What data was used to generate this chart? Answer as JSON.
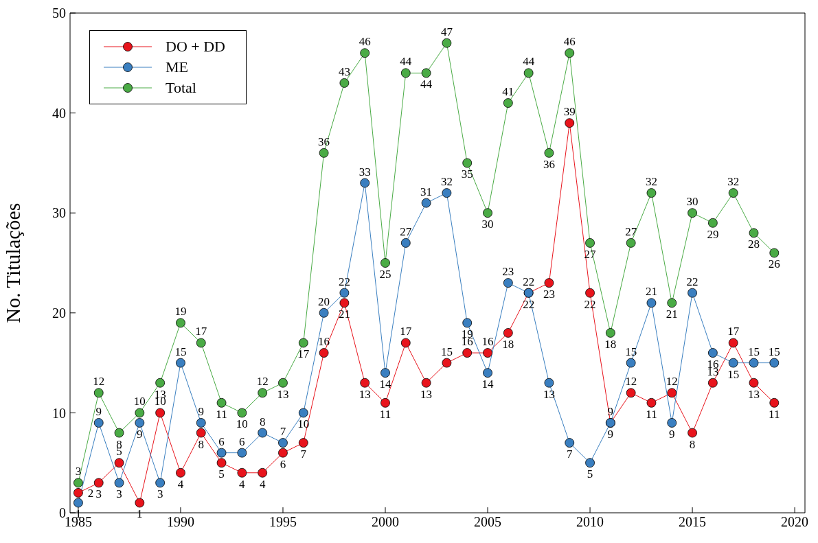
{
  "chart_data": {
    "type": "line",
    "ylabel": "No. Titulações",
    "x": [
      1985,
      1986,
      1987,
      1988,
      1989,
      1990,
      1991,
      1992,
      1993,
      1994,
      1995,
      1996,
      1997,
      1998,
      1999,
      2000,
      2001,
      2002,
      2003,
      2004,
      2005,
      2006,
      2007,
      2008,
      2009,
      2010,
      2011,
      2012,
      2013,
      2014,
      2015,
      2016,
      2017,
      2018,
      2019
    ],
    "series": [
      {
        "name": "DO + DD",
        "color": "#e8141c",
        "values": [
          2,
          3,
          5,
          1,
          10,
          4,
          8,
          5,
          4,
          4,
          6,
          7,
          16,
          21,
          13,
          11,
          17,
          13,
          15,
          16,
          16,
          18,
          22,
          23,
          39,
          22,
          9,
          12,
          11,
          12,
          8,
          13,
          17,
          13,
          11
        ]
      },
      {
        "name": "ME",
        "color": "#3a7fc0",
        "values": [
          1,
          9,
          3,
          9,
          3,
          15,
          9,
          6,
          6,
          8,
          7,
          10,
          20,
          22,
          33,
          14,
          27,
          31,
          32,
          19,
          14,
          23,
          22,
          13,
          7,
          5,
          9,
          15,
          21,
          9,
          22,
          16,
          15,
          15,
          15
        ]
      },
      {
        "name": "Total",
        "color": "#4aab45",
        "values": [
          3,
          12,
          8,
          10,
          13,
          19,
          17,
          11,
          10,
          12,
          13,
          17,
          36,
          43,
          46,
          25,
          44,
          44,
          47,
          35,
          30,
          41,
          44,
          36,
          46,
          27,
          18,
          27,
          32,
          21,
          30,
          29,
          32,
          28,
          26
        ]
      }
    ],
    "xlim": [
      1984.6,
      2020.5
    ],
    "xticks": [
      1985,
      1990,
      1995,
      2000,
      2005,
      2010,
      2015,
      2020
    ],
    "ylim": [
      0,
      50
    ],
    "yticks": [
      0,
      10,
      20,
      30,
      40,
      50
    ],
    "grid": false,
    "legend": "top left",
    "marker": "circle",
    "line_style": "solid",
    "data_labels": true
  }
}
